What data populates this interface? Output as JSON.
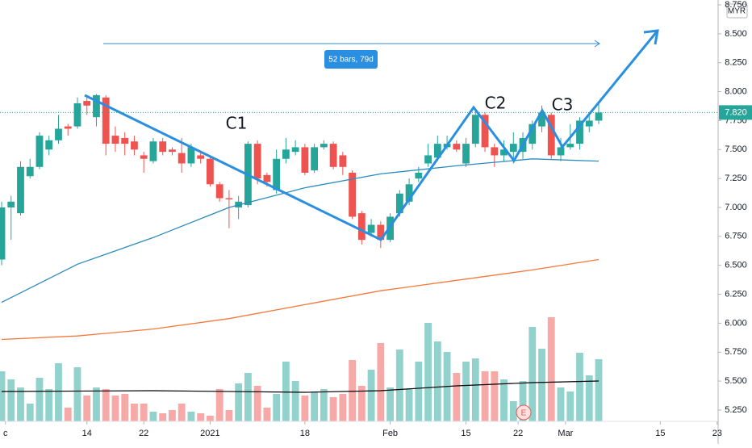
{
  "chart_data": {
    "type": "candlestick",
    "currency": "MYR",
    "x": [
      0,
      1,
      2,
      3,
      4,
      5,
      6,
      7,
      8,
      9,
      10,
      11,
      12,
      13,
      14,
      15,
      16,
      17,
      18,
      19,
      20,
      21,
      22,
      23,
      24,
      25,
      26,
      27,
      28,
      29,
      30,
      31,
      32,
      33,
      34,
      35,
      36,
      37,
      38,
      39,
      40,
      41,
      42,
      43,
      44,
      45,
      46,
      47,
      48,
      49,
      50,
      51,
      52,
      53,
      54,
      55,
      56,
      57,
      58,
      59,
      60,
      61,
      62,
      63
    ],
    "open": [
      6.55,
      7.0,
      6.95,
      7.27,
      7.35,
      7.5,
      7.58,
      7.7,
      7.7,
      7.92,
      7.78,
      7.95,
      7.62,
      7.6,
      7.57,
      7.45,
      7.4,
      7.57,
      7.5,
      7.47,
      7.38,
      7.45,
      7.42,
      7.2,
      7.08,
      7.0,
      7.02,
      7.55,
      7.28,
      7.15,
      7.42,
      7.48,
      7.52,
      7.32,
      7.52,
      7.55,
      7.45,
      7.3,
      6.95,
      6.78,
      6.85,
      6.72,
      6.95,
      7.05,
      7.25,
      7.38,
      7.43,
      7.52,
      7.55,
      7.38,
      7.55,
      7.8,
      7.52,
      7.45,
      7.48,
      7.48,
      7.55,
      7.7,
      7.8,
      7.45,
      7.52,
      7.55,
      7.7,
      7.75
    ],
    "high": [
      7.05,
      7.1,
      7.4,
      7.42,
      7.65,
      7.62,
      7.8,
      7.72,
      7.95,
      7.97,
      7.98,
      7.97,
      7.7,
      7.65,
      7.62,
      7.48,
      7.6,
      7.6,
      7.52,
      7.6,
      7.55,
      7.48,
      7.45,
      7.22,
      7.15,
      7.1,
      7.57,
      7.58,
      7.3,
      7.5,
      7.6,
      7.58,
      7.55,
      7.55,
      7.58,
      7.57,
      7.48,
      7.32,
      6.97,
      6.9,
      6.88,
      6.95,
      7.15,
      7.25,
      7.35,
      7.55,
      7.62,
      7.62,
      7.58,
      7.6,
      7.85,
      7.82,
      7.55,
      7.58,
      7.65,
      7.65,
      7.75,
      7.88,
      7.82,
      7.6,
      7.72,
      7.78,
      7.8,
      7.9
    ],
    "low": [
      6.5,
      6.72,
      6.93,
      7.25,
      7.33,
      7.45,
      7.55,
      7.62,
      7.68,
      7.8,
      7.7,
      7.45,
      7.48,
      7.45,
      7.45,
      7.3,
      7.38,
      7.45,
      7.45,
      7.3,
      7.35,
      7.38,
      7.18,
      7.05,
      6.82,
      6.9,
      7.0,
      7.2,
      7.18,
      7.12,
      7.38,
      7.45,
      7.28,
      7.3,
      7.5,
      7.33,
      7.28,
      6.9,
      6.68,
      6.75,
      6.65,
      6.7,
      6.92,
      7.02,
      7.22,
      7.35,
      7.4,
      7.5,
      7.48,
      7.35,
      7.52,
      7.48,
      7.35,
      7.4,
      7.38,
      7.42,
      7.5,
      7.65,
      7.42,
      7.4,
      7.5,
      7.5,
      7.65,
      7.72
    ],
    "close": [
      7.0,
      7.05,
      7.35,
      7.35,
      7.62,
      7.58,
      7.68,
      7.68,
      7.9,
      7.88,
      7.97,
      7.55,
      7.55,
      7.55,
      7.5,
      7.42,
      7.57,
      7.48,
      7.48,
      7.38,
      7.52,
      7.42,
      7.2,
      7.08,
      7.07,
      7.05,
      7.55,
      7.25,
      7.22,
      7.42,
      7.5,
      7.52,
      7.3,
      7.52,
      7.55,
      7.35,
      7.35,
      6.92,
      6.72,
      6.85,
      6.72,
      6.92,
      7.12,
      7.2,
      7.3,
      7.45,
      7.55,
      7.55,
      7.5,
      7.55,
      7.8,
      7.52,
      7.45,
      7.5,
      7.55,
      7.6,
      7.72,
      7.82,
      7.45,
      7.52,
      7.55,
      7.75,
      7.75,
      7.82
    ],
    "volume": [
      62,
      52,
      42,
      22,
      54,
      40,
      72,
      17,
      67,
      32,
      42,
      40,
      32,
      34,
      22,
      22,
      12,
      10,
      14,
      22,
      12,
      10,
      7,
      40,
      14,
      47,
      60,
      44,
      17,
      34,
      74,
      50,
      32,
      37,
      40,
      30,
      34,
      76,
      44,
      64,
      97,
      42,
      89,
      40,
      74,
      122,
      99,
      86,
      60,
      74,
      78,
      62,
      62,
      52,
      25,
      50,
      117,
      90,
      129,
      42,
      37,
      85,
      57,
      77
    ],
    "volume_ylim": [
      0,
      140
    ],
    "up_color": "#26a69a",
    "down_color": "#ef5350",
    "ylim": [
      5.152,
      8.792
    ],
    "yticks": [
      {
        "value": 5.25,
        "label": "5.250"
      },
      {
        "value": 5.5,
        "label": "5.500"
      },
      {
        "value": 5.75,
        "label": "5.750"
      },
      {
        "value": 6,
        "label": "6.000"
      },
      {
        "value": 6.25,
        "label": "6.250"
      },
      {
        "value": 6.5,
        "label": "6.500"
      },
      {
        "value": 6.75,
        "label": "6.750"
      },
      {
        "value": 7,
        "label": "7.000"
      },
      {
        "value": 7.25,
        "label": "7.250"
      },
      {
        "value": 7.5,
        "label": "7.500"
      },
      {
        "value": 7.75,
        "label": "7.750"
      },
      {
        "value": 8,
        "label": "8.000"
      },
      {
        "value": 8.25,
        "label": "8.250"
      },
      {
        "value": 8.5,
        "label": "8.500"
      },
      {
        "value": 8.75,
        "label": "8.750"
      }
    ],
    "xlim": [
      -0.17,
      75.6
    ],
    "xticks": [
      {
        "value": 0.4,
        "label": "c"
      },
      {
        "value": 9,
        "label": "14"
      },
      {
        "value": 15,
        "label": "22"
      },
      {
        "value": 22,
        "label": "2021"
      },
      {
        "value": 32,
        "label": "18"
      },
      {
        "value": 41,
        "label": "Feb"
      },
      {
        "value": 49,
        "label": "15"
      },
      {
        "value": 54.5,
        "label": "22"
      },
      {
        "value": 59.5,
        "label": "Mar"
      },
      {
        "value": 69.5,
        "label": "15"
      },
      {
        "value": 75.5,
        "label": "23"
      }
    ],
    "last_price": {
      "value": 7.82,
      "label": "7.820"
    },
    "lines": [
      {
        "color": "#2a8bbf",
        "x": [
          0,
          8,
          16,
          24,
          32,
          40,
          48,
          56,
          63
        ],
        "values": [
          6.18,
          6.51,
          6.74,
          7.0,
          7.17,
          7.29,
          7.36,
          7.42,
          7.4
        ]
      },
      {
        "color": "#f4783b",
        "x": [
          0,
          8,
          16,
          24,
          32,
          40,
          48,
          56,
          63
        ],
        "values": [
          5.86,
          5.89,
          5.95,
          6.04,
          6.16,
          6.28,
          6.37,
          6.46,
          6.55
        ]
      }
    ],
    "volume_ma": {
      "color": "#000000",
      "x": [
        0,
        16,
        32,
        40,
        48,
        56,
        63
      ],
      "values": [
        37,
        38,
        36,
        38,
        44,
        48,
        50
      ]
    },
    "range_label": "52 bars, 79d",
    "annotations": [
      "C1",
      "C2",
      "C3"
    ],
    "earnings_marker": "E"
  }
}
